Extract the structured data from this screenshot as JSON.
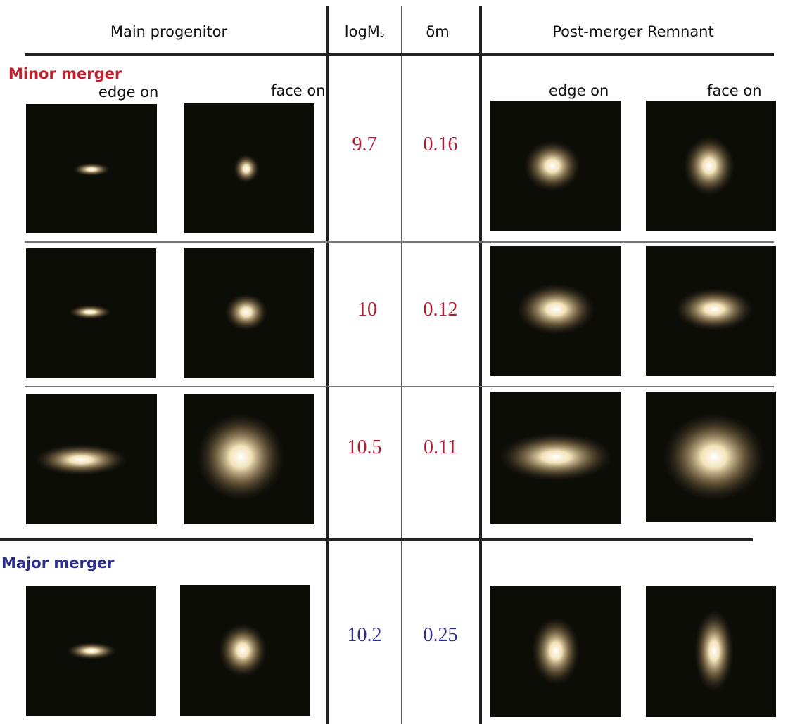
{
  "header": {
    "progenitor": "Main progenitor",
    "log_mass": {
      "base": "logM",
      "sub": "s"
    },
    "delta_m": "δm",
    "remnant": "Post-merger Remnant"
  },
  "view_labels": {
    "progenitor": [
      "edge on",
      "face on"
    ],
    "remnant": [
      "edge on",
      "face on"
    ]
  },
  "sections": [
    {
      "label": "Minor merger",
      "rows": [
        [
          9.7,
          0.16
        ],
        [
          10,
          0.12
        ],
        [
          10.5,
          0.11
        ]
      ]
    },
    {
      "label": "Major merger",
      "rows": [
        [
          10.2,
          0.25
        ]
      ]
    }
  ]
}
